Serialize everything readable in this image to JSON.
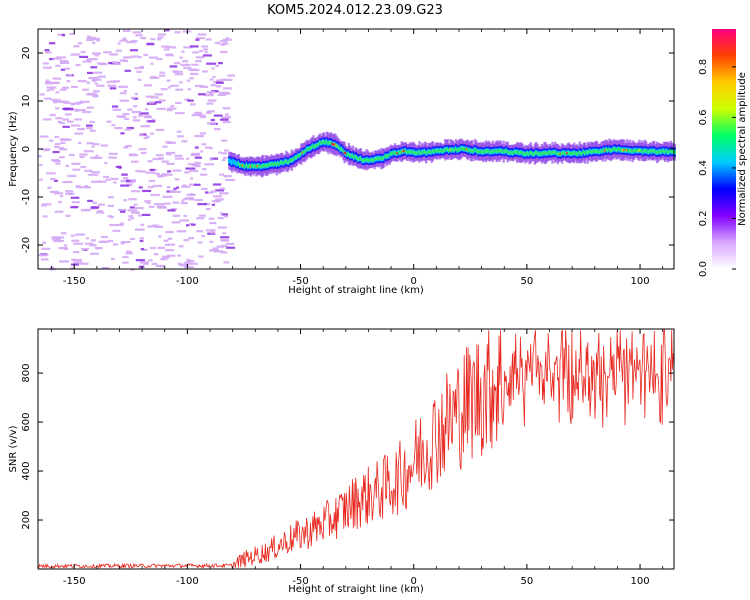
{
  "title": "KOM5.2024.012.23.09.G23",
  "chart_data": [
    {
      "type": "heatmap",
      "xlabel": "Height of straight line (km)",
      "ylabel": "Frequency (Hz)",
      "xlim": [
        -166,
        115
      ],
      "ylim": [
        -25,
        25
      ],
      "xticks": [
        -150,
        -100,
        -50,
        0,
        50,
        100
      ],
      "yticks": [
        -20,
        -10,
        0,
        10,
        20
      ],
      "colorbar": {
        "label": "Normalized spectral amplitude",
        "range": [
          0,
          0.95
        ],
        "ticks": [
          "0.0",
          "0.2",
          "0.4",
          "0.6",
          "0.8"
        ],
        "colormap": [
          "#ffffff",
          "#d9a6ff",
          "#8000ff",
          "#0000ff",
          "#00ccff",
          "#00ff66",
          "#ccff00",
          "#ffcc00",
          "#ff4000",
          "#ff0080"
        ]
      },
      "ridge": {
        "x": [
          -82,
          -75,
          -70,
          -65,
          -60,
          -55,
          -50,
          -45,
          -40,
          -35,
          -30,
          -25,
          -20,
          -15,
          -10,
          -5,
          0,
          10,
          20,
          30,
          40,
          50,
          60,
          70,
          80,
          90,
          100,
          110,
          115
        ],
        "y": [
          -2.5,
          -3.5,
          -3.5,
          -3.5,
          -3.0,
          -2.5,
          -1.0,
          0.5,
          1.5,
          1.0,
          -1.0,
          -2.0,
          -2.5,
          -2.0,
          -1.0,
          -0.5,
          -0.8,
          -0.5,
          0.0,
          -0.5,
          -0.5,
          -1.0,
          -0.8,
          -1.0,
          -0.5,
          0.0,
          -0.5,
          -0.5,
          -0.5
        ]
      },
      "noise_region_xmax": -82
    },
    {
      "type": "line",
      "xlabel": "Height of straight line (km)",
      "ylabel": "SNR (v/v)",
      "xlim": [
        -166,
        115
      ],
      "ylim": [
        0,
        980
      ],
      "xticks": [
        -150,
        -100,
        -50,
        0,
        50,
        100
      ],
      "yticks": [
        200,
        400,
        600,
        800
      ],
      "series": [
        {
          "color": "#e8271f",
          "trend": {
            "x": [
              -166,
              -80,
              -75,
              -65,
              -55,
              -45,
              -35,
              -25,
              -15,
              -5,
              5,
              15,
              25,
              35,
              45,
              55,
              65,
              75,
              85,
              95,
              105,
              115
            ],
            "y": [
              12,
              14,
              40,
              70,
              120,
              160,
              210,
              280,
              320,
              380,
              500,
              600,
              690,
              760,
              790,
              800,
              800,
              800,
              795,
              790,
              790,
              790
            ]
          }
        }
      ]
    }
  ]
}
